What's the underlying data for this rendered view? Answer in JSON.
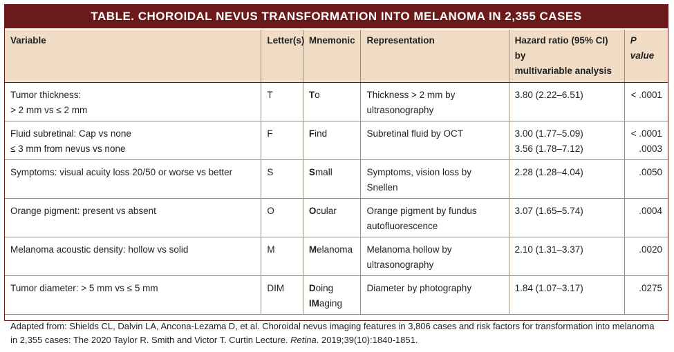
{
  "title": "TABLE. CHOROIDAL NEVUS TRANSFORMATION INTO MELANOMA IN 2,355 CASES",
  "headers": {
    "variable": "Variable",
    "letters": "Letter(s)",
    "mnemonic": "Mnemonic",
    "representation": "Representation",
    "hazard_line1": "Hazard ratio (95% CI) by",
    "hazard_line2": "multivariable analysis",
    "pvalue": "P value"
  },
  "rows": [
    {
      "variable_l1": "Tumor thickness:",
      "variable_l2": "> 2 mm vs ≤ 2 mm",
      "letters": "T",
      "mn_bold": "T",
      "mn_rest": "o",
      "rep_l1": "Thickness > 2 mm by",
      "rep_l2": "ultrasonography",
      "hr_l1": "3.80 (2.22–6.51)",
      "hr_l2": "",
      "p_l1": "< .0001",
      "p_l2": ""
    },
    {
      "variable_l1": "Fluid subretinal: Cap vs none",
      "variable_l2": "≤ 3 mm from nevus vs none",
      "letters": "F",
      "mn_bold": "F",
      "mn_rest": "ind",
      "rep_l1": "Subretinal fluid by OCT",
      "rep_l2": "",
      "hr_l1": "3.00 (1.77–5.09)",
      "hr_l2": "3.56 (1.78–7.12)",
      "p_l1": "< .0001",
      "p_l2": ".0003"
    },
    {
      "variable_l1": "Symptoms: visual acuity loss 20/50 or worse vs better",
      "variable_l2": "",
      "letters": "S",
      "mn_bold": "S",
      "mn_rest": "mall",
      "rep_l1": "Symptoms, vision loss by Snellen",
      "rep_l2": "",
      "hr_l1": "2.28 (1.28–4.04)",
      "hr_l2": "",
      "p_l1": ".0050",
      "p_l2": ""
    },
    {
      "variable_l1": "Orange pigment: present vs absent",
      "variable_l2": "",
      "letters": "O",
      "mn_bold": "O",
      "mn_rest": "cular",
      "rep_l1": "Orange pigment by fundus",
      "rep_l2": "autofluorescence",
      "hr_l1": "3.07 (1.65–5.74)",
      "hr_l2": "",
      "p_l1": ".0004",
      "p_l2": ""
    },
    {
      "variable_l1": "Melanoma acoustic density: hollow vs solid",
      "variable_l2": "",
      "letters": "M",
      "mn_bold": "M",
      "mn_rest": "elanoma",
      "rep_l1": "Melanoma hollow by",
      "rep_l2": "ultrasonography",
      "hr_l1": "2.10 (1.31–3.37)",
      "hr_l2": "",
      "p_l1": ".0020",
      "p_l2": ""
    },
    {
      "variable_l1": "Tumor diameter: > 5 mm vs ≤ 5 mm",
      "variable_l2": "",
      "letters": "DIM",
      "mn_bold": "D",
      "mn_rest": "oing",
      "mn2_bold": "IM",
      "mn2_rest": "aging",
      "rep_l1": "Diameter by photography",
      "rep_l2": "",
      "hr_l1": "1.84 (1.07–3.17)",
      "hr_l2": "",
      "p_l1": ".0275",
      "p_l2": ""
    }
  ],
  "footer": {
    "pre": "Adapted from: Shields CL, Dalvin LA, Ancona-Lezama D, et al. Choroidal nevus imaging features in 3,806 cases and risk factors for transformation into melanoma in 2,355 cases: The 2020 Taylor R. Smith and Victor T. Curtin Lecture. ",
    "journal": "Retina",
    "post": ". 2019;39(10):1840-1851."
  },
  "colors": {
    "title_bg": "#6b1a1a",
    "header_bg": "#f1ddc6"
  }
}
